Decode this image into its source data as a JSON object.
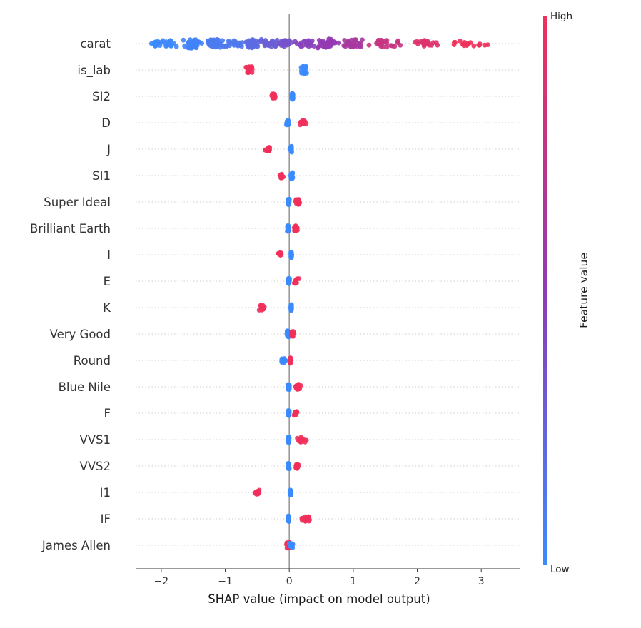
{
  "chart_data": {
    "type": "scatter",
    "subtype": "shap_beeswarm",
    "xlabel": "SHAP value (impact on model output)",
    "xlim": [
      -2.4,
      3.6
    ],
    "xticks": [
      -2,
      -1,
      0,
      1,
      2,
      3
    ],
    "xtick_labels": [
      "−2",
      "−1",
      "0",
      "1",
      "2",
      "3"
    ],
    "colorbar": {
      "title": "Feature value",
      "high_label": "High",
      "low_label": "Low",
      "low_color": "#3b8bff",
      "mid_color": "#8f3ab6",
      "high_color": "#f0305a"
    },
    "features": [
      {
        "name": "carat",
        "clusters": [
          {
            "x": -2.1,
            "w": 0.12,
            "n": 14,
            "c": 0.0
          },
          {
            "x": -1.9,
            "w": 0.25,
            "n": 20,
            "c": 0.02
          },
          {
            "x": -1.5,
            "w": 0.2,
            "n": 40,
            "c": 0.05
          },
          {
            "x": -1.15,
            "w": 0.2,
            "n": 34,
            "c": 0.1
          },
          {
            "x": -0.85,
            "w": 0.2,
            "n": 20,
            "c": 0.12
          },
          {
            "x": -0.6,
            "w": 0.18,
            "n": 36,
            "c": 0.2
          },
          {
            "x": -0.3,
            "w": 0.2,
            "n": 26,
            "c": 0.28
          },
          {
            "x": -0.05,
            "w": 0.12,
            "n": 22,
            "c": 0.35
          },
          {
            "x": 0.25,
            "w": 0.2,
            "n": 22,
            "c": 0.45
          },
          {
            "x": 0.6,
            "w": 0.2,
            "n": 40,
            "c": 0.52
          },
          {
            "x": 1.0,
            "w": 0.25,
            "n": 30,
            "c": 0.62
          },
          {
            "x": 1.5,
            "w": 0.3,
            "n": 26,
            "c": 0.78
          },
          {
            "x": 2.1,
            "w": 0.35,
            "n": 22,
            "c": 0.9
          },
          {
            "x": 2.8,
            "w": 0.45,
            "n": 18,
            "c": 1.0
          }
        ]
      },
      {
        "name": "is_lab",
        "clusters": [
          {
            "x": -0.62,
            "w": 0.08,
            "n": 22,
            "c": 1.0
          },
          {
            "x": 0.23,
            "w": 0.06,
            "n": 26,
            "c": 0.0
          }
        ]
      },
      {
        "name": "SI2",
        "clusters": [
          {
            "x": -0.25,
            "w": 0.06,
            "n": 14,
            "c": 1.0
          },
          {
            "x": 0.05,
            "w": 0.02,
            "n": 20,
            "c": 0.0
          }
        ]
      },
      {
        "name": "D",
        "clusters": [
          {
            "x": -0.03,
            "w": 0.03,
            "n": 16,
            "c": 0.0
          },
          {
            "x": 0.22,
            "w": 0.08,
            "n": 16,
            "c": 1.0
          }
        ]
      },
      {
        "name": "J",
        "clusters": [
          {
            "x": -0.33,
            "w": 0.07,
            "n": 14,
            "c": 1.0
          },
          {
            "x": 0.03,
            "w": 0.015,
            "n": 20,
            "c": 0.0
          }
        ]
      },
      {
        "name": "SI1",
        "clusters": [
          {
            "x": -0.12,
            "w": 0.04,
            "n": 12,
            "c": 1.0
          },
          {
            "x": 0.04,
            "w": 0.02,
            "n": 20,
            "c": 0.0
          }
        ]
      },
      {
        "name": "Super Ideal",
        "clusters": [
          {
            "x": -0.01,
            "w": 0.02,
            "n": 18,
            "c": 0.0
          },
          {
            "x": 0.12,
            "w": 0.06,
            "n": 14,
            "c": 1.0
          }
        ]
      },
      {
        "name": "Brilliant Earth",
        "clusters": [
          {
            "x": -0.02,
            "w": 0.03,
            "n": 18,
            "c": 0.0
          },
          {
            "x": 0.09,
            "w": 0.05,
            "n": 14,
            "c": 1.0
          }
        ]
      },
      {
        "name": "I",
        "clusters": [
          {
            "x": -0.15,
            "w": 0.05,
            "n": 12,
            "c": 1.0
          },
          {
            "x": 0.03,
            "w": 0.01,
            "n": 20,
            "c": 0.0
          }
        ]
      },
      {
        "name": "E",
        "clusters": [
          {
            "x": -0.01,
            "w": 0.02,
            "n": 18,
            "c": 0.0
          },
          {
            "x": 0.11,
            "w": 0.05,
            "n": 14,
            "c": 1.0
          }
        ]
      },
      {
        "name": "K",
        "clusters": [
          {
            "x": -0.44,
            "w": 0.07,
            "n": 14,
            "c": 1.0
          },
          {
            "x": 0.03,
            "w": 0.01,
            "n": 20,
            "c": 0.0
          }
        ]
      },
      {
        "name": "Very Good",
        "clusters": [
          {
            "x": -0.02,
            "w": 0.03,
            "n": 20,
            "c": 0.0
          },
          {
            "x": 0.05,
            "w": 0.04,
            "n": 14,
            "c": 1.0
          }
        ]
      },
      {
        "name": "Round",
        "clusters": [
          {
            "x": -0.09,
            "w": 0.05,
            "n": 12,
            "c": 0.0
          },
          {
            "x": 0.02,
            "w": 0.01,
            "n": 18,
            "c": 1.0
          }
        ]
      },
      {
        "name": "Blue Nile",
        "clusters": [
          {
            "x": -0.01,
            "w": 0.02,
            "n": 18,
            "c": 0.0
          },
          {
            "x": 0.14,
            "w": 0.07,
            "n": 14,
            "c": 1.0
          }
        ]
      },
      {
        "name": "F",
        "clusters": [
          {
            "x": -0.01,
            "w": 0.015,
            "n": 18,
            "c": 0.0
          },
          {
            "x": 0.1,
            "w": 0.04,
            "n": 12,
            "c": 1.0
          }
        ]
      },
      {
        "name": "VVS1",
        "clusters": [
          {
            "x": -0.01,
            "w": 0.015,
            "n": 18,
            "c": 0.0
          },
          {
            "x": 0.2,
            "w": 0.1,
            "n": 14,
            "c": 1.0
          }
        ]
      },
      {
        "name": "VVS2",
        "clusters": [
          {
            "x": -0.01,
            "w": 0.015,
            "n": 18,
            "c": 0.0
          },
          {
            "x": 0.12,
            "w": 0.05,
            "n": 12,
            "c": 1.0
          }
        ]
      },
      {
        "name": "I1",
        "clusters": [
          {
            "x": -0.5,
            "w": 0.06,
            "n": 12,
            "c": 1.0
          },
          {
            "x": 0.02,
            "w": 0.01,
            "n": 18,
            "c": 0.0
          }
        ]
      },
      {
        "name": "IF",
        "clusters": [
          {
            "x": -0.01,
            "w": 0.015,
            "n": 18,
            "c": 0.0
          },
          {
            "x": 0.28,
            "w": 0.12,
            "n": 16,
            "c": 1.0
          }
        ]
      },
      {
        "name": "James Allen",
        "clusters": [
          {
            "x": -0.01,
            "w": 0.04,
            "n": 18,
            "c": 1.0
          },
          {
            "x": 0.03,
            "w": 0.04,
            "n": 14,
            "c": 0.0
          }
        ]
      }
    ]
  }
}
